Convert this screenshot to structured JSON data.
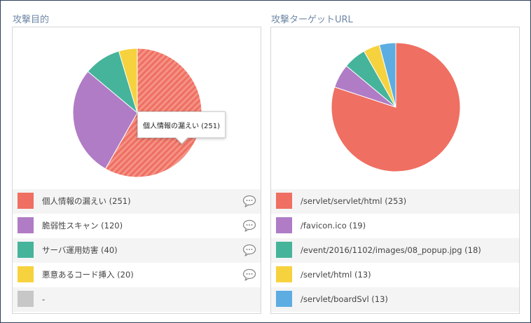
{
  "panels": [
    {
      "title": "攻撃目的",
      "tooltip": "個人情報の漏えい (251)",
      "legend": [
        {
          "label": "個人情報の漏えい (251)",
          "color": "#ef6f62",
          "value": 251,
          "comment": true
        },
        {
          "label": "脆弱性スキャン (120)",
          "color": "#b07cc6",
          "value": 120,
          "comment": true
        },
        {
          "label": "サーバ運用妨害 (40)",
          "color": "#45b49b",
          "value": 40,
          "comment": true
        },
        {
          "label": "悪意あるコード挿入 (20)",
          "color": "#f6d23f",
          "value": 20,
          "comment": true
        },
        {
          "label": "-",
          "color": "#c7c7c7",
          "value": 0,
          "comment": false
        }
      ]
    },
    {
      "title": "攻撃ターゲットURL",
      "legend": [
        {
          "label": "/servlet/servlet/html (253)",
          "color": "#ef6f62",
          "value": 253
        },
        {
          "label": "/favicon.ico (19)",
          "color": "#b07cc6",
          "value": 19
        },
        {
          "label": "/event/2016/1102/images/08_popup.jpg (18)",
          "color": "#45b49b",
          "value": 18
        },
        {
          "label": "/servlet/html (13)",
          "color": "#f6d23f",
          "value": 13
        },
        {
          "label": "/servlet/boardSvl (13)",
          "color": "#5dade2",
          "value": 13
        }
      ]
    }
  ],
  "icons": {
    "comment": "speech-bubble-icon"
  }
}
